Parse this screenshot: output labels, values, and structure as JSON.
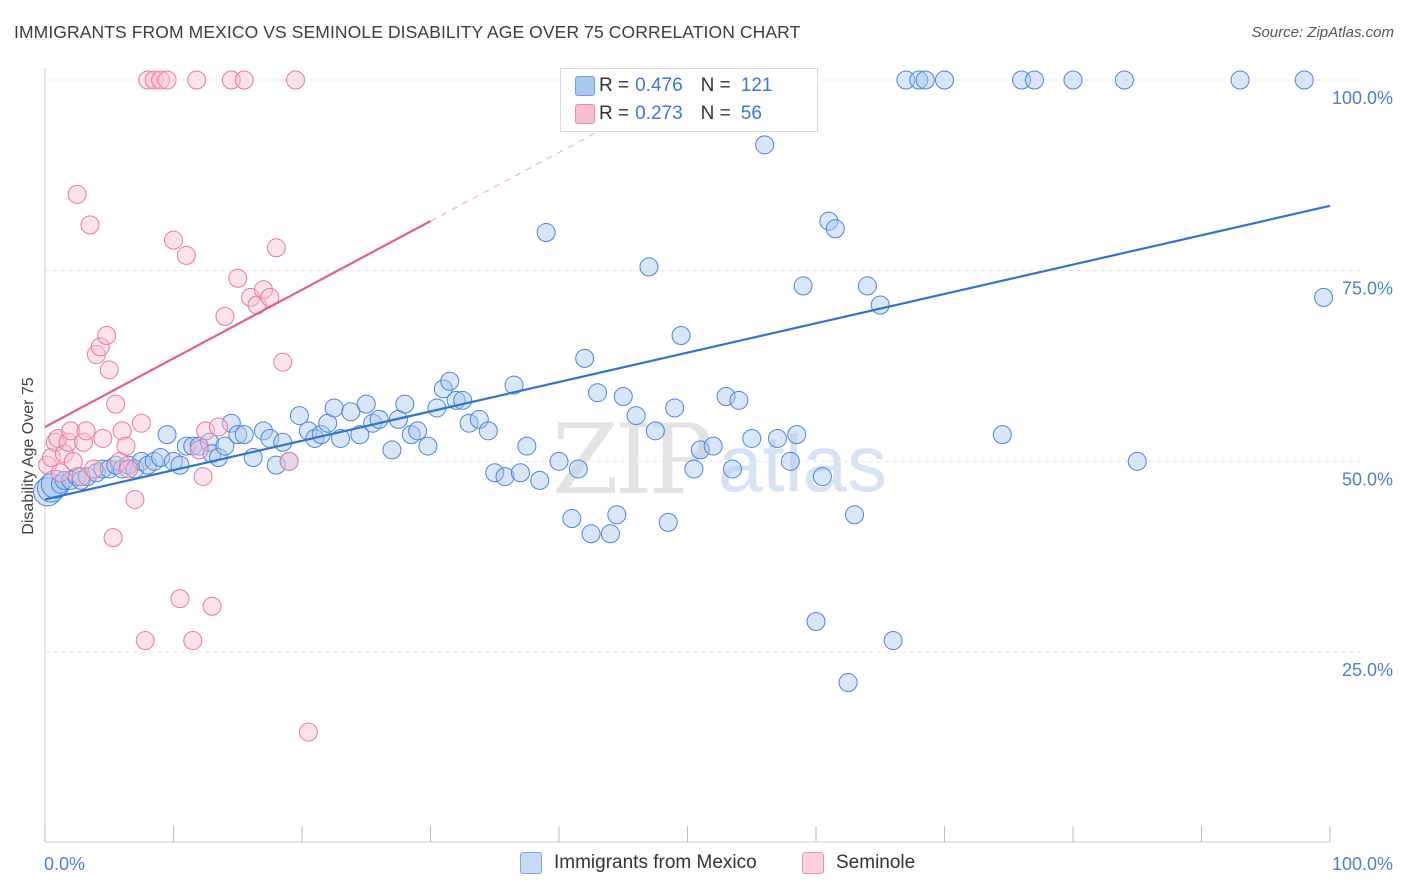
{
  "title": "IMMIGRANTS FROM MEXICO VS SEMINOLE DISABILITY AGE OVER 75 CORRELATION CHART",
  "source": "Source: ZipAtlas.com",
  "watermark": {
    "zip": "ZIP",
    "atlas": "atlas"
  },
  "legend": {
    "rows": [
      {
        "r_label": "R =",
        "r_value": "0.476",
        "n_label": "N =",
        "n_value": "121",
        "color": "#a9c8f0",
        "border": "#6f9fe0"
      },
      {
        "r_label": "R =",
        "r_value": "0.273",
        "n_label": "N =",
        "n_value": "56",
        "color": "#f8bfd2",
        "border": "#e889a8"
      }
    ]
  },
  "bottom_legend": [
    {
      "label": "Immigrants from Mexico",
      "color": "#c5daf5",
      "border": "#7aa6e3"
    },
    {
      "label": "Seminole",
      "color": "#fbd0de",
      "border": "#ec93b1"
    }
  ],
  "chart_data": {
    "type": "scatter",
    "title": "IMMIGRANTS FROM MEXICO VS SEMINOLE DISABILITY AGE OVER 75 CORRELATION CHART",
    "xlabel": "",
    "ylabel": "Disability Age Over 75",
    "xlim": [
      0,
      100
    ],
    "ylim": [
      0,
      100
    ],
    "x_tick_labels": [
      "0.0%",
      "100.0%"
    ],
    "y_ticks": [
      25,
      50,
      75,
      100
    ],
    "y_tick_labels": [
      "25.0%",
      "50.0%",
      "75.0%",
      "100.0%"
    ],
    "grid": true,
    "legend_placement": "top-center",
    "series": [
      {
        "name": "Immigrants from Mexico",
        "color": "#4a86d8",
        "fill": "rgba(170,200,240,0.45)",
        "trend": {
          "x0": 0,
          "y0": 45.0,
          "x1": 100,
          "y1": 83.5,
          "color": "#2f74d0"
        },
        "points": [
          [
            0.2,
            46
          ],
          [
            0.5,
            46.5
          ],
          [
            0.8,
            47
          ],
          [
            1.2,
            47
          ],
          [
            1.5,
            47.5
          ],
          [
            2,
            47.5
          ],
          [
            2.5,
            48
          ],
          [
            2.8,
            47.5
          ],
          [
            3.3,
            48
          ],
          [
            4,
            48.5
          ],
          [
            4.5,
            49
          ],
          [
            5,
            49
          ],
          [
            5.5,
            49.5
          ],
          [
            6,
            49
          ],
          [
            6.5,
            49.5
          ],
          [
            7,
            49
          ],
          [
            7.5,
            50
          ],
          [
            8,
            49.5
          ],
          [
            8.5,
            50
          ],
          [
            9,
            50.5
          ],
          [
            9.5,
            53.5
          ],
          [
            10,
            50
          ],
          [
            10.5,
            49.5
          ],
          [
            11,
            52
          ],
          [
            11.5,
            52
          ],
          [
            12,
            52
          ],
          [
            12.8,
            52.5
          ],
          [
            13,
            51
          ],
          [
            13.5,
            50.5
          ],
          [
            14,
            52
          ],
          [
            14.5,
            55
          ],
          [
            15,
            53.5
          ],
          [
            15.5,
            53.5
          ],
          [
            16.2,
            50.5
          ],
          [
            17,
            54
          ],
          [
            17.5,
            53
          ],
          [
            18,
            49.5
          ],
          [
            18.5,
            52.5
          ],
          [
            19,
            50
          ],
          [
            19.8,
            56
          ],
          [
            20.5,
            54
          ],
          [
            21,
            53
          ],
          [
            21.5,
            53.5
          ],
          [
            22,
            55
          ],
          [
            22.5,
            57
          ],
          [
            23,
            53
          ],
          [
            23.8,
            56.5
          ],
          [
            24.5,
            53.5
          ],
          [
            25,
            57.5
          ],
          [
            25.5,
            55
          ],
          [
            26,
            55.5
          ],
          [
            27,
            51.5
          ],
          [
            27.5,
            55.5
          ],
          [
            28,
            57.5
          ],
          [
            28.5,
            53.5
          ],
          [
            29,
            54
          ],
          [
            29.8,
            52
          ],
          [
            30.5,
            57
          ],
          [
            31,
            59.5
          ],
          [
            31.5,
            60.5
          ],
          [
            32,
            58
          ],
          [
            32.5,
            58
          ],
          [
            33,
            55
          ],
          [
            33.8,
            55.5
          ],
          [
            34.5,
            54
          ],
          [
            35,
            48.5
          ],
          [
            35.8,
            48
          ],
          [
            36.5,
            60
          ],
          [
            37,
            48.5
          ],
          [
            37.5,
            52
          ],
          [
            38.5,
            47.5
          ],
          [
            39,
            80
          ],
          [
            40,
            50
          ],
          [
            41,
            42.5
          ],
          [
            41.5,
            49
          ],
          [
            42,
            63.5
          ],
          [
            42.5,
            40.5
          ],
          [
            43,
            59
          ],
          [
            44,
            40.5
          ],
          [
            44.5,
            43
          ],
          [
            45,
            58.5
          ],
          [
            46,
            56
          ],
          [
            47,
            75.5
          ],
          [
            47.5,
            54
          ],
          [
            48.5,
            42
          ],
          [
            49,
            57
          ],
          [
            49.5,
            66.5
          ],
          [
            50.5,
            49
          ],
          [
            51,
            51.5
          ],
          [
            52,
            52
          ],
          [
            53,
            58.5
          ],
          [
            53.5,
            49
          ],
          [
            54,
            58
          ],
          [
            55,
            53
          ],
          [
            56,
            91.5
          ],
          [
            57,
            53
          ],
          [
            58,
            50
          ],
          [
            58.5,
            53.5
          ],
          [
            59,
            73
          ],
          [
            60,
            29
          ],
          [
            60.5,
            48
          ],
          [
            61,
            81.5
          ],
          [
            61.5,
            80.5
          ],
          [
            62.5,
            21
          ],
          [
            63,
            43
          ],
          [
            64,
            73
          ],
          [
            65,
            70.5
          ],
          [
            66,
            26.5
          ],
          [
            67,
            100
          ],
          [
            68,
            100
          ],
          [
            68.5,
            100
          ],
          [
            70,
            100
          ],
          [
            74.5,
            53.5
          ],
          [
            76,
            100
          ],
          [
            77,
            100
          ],
          [
            80,
            100
          ],
          [
            84,
            100
          ],
          [
            85,
            50
          ],
          [
            93,
            100
          ],
          [
            99.5,
            71.5
          ],
          [
            98,
            100
          ]
        ]
      },
      {
        "name": "Seminole",
        "color": "#e8789e",
        "fill": "rgba(248,190,210,0.45)",
        "trend": {
          "x0": 0,
          "y0": 54.5,
          "x1": 30,
          "y1": 81.5,
          "color": "#e0608a"
        },
        "trend_extension": {
          "x0": 30,
          "y0": 81.5,
          "x1": 50,
          "y1": 99.5
        },
        "points": [
          [
            0.2,
            49.5
          ],
          [
            0.5,
            50.5
          ],
          [
            0.8,
            52.5
          ],
          [
            1,
            53
          ],
          [
            1.2,
            48.5
          ],
          [
            1.5,
            51
          ],
          [
            1.8,
            52.5
          ],
          [
            2,
            54
          ],
          [
            2.2,
            50
          ],
          [
            2.5,
            85
          ],
          [
            2.8,
            48
          ],
          [
            3,
            52.5
          ],
          [
            3.2,
            54
          ],
          [
            3.5,
            81
          ],
          [
            3.8,
            49
          ],
          [
            4,
            64
          ],
          [
            4.3,
            65
          ],
          [
            4.5,
            53
          ],
          [
            4.8,
            66.5
          ],
          [
            5,
            62
          ],
          [
            5.3,
            40
          ],
          [
            5.5,
            57.5
          ],
          [
            5.8,
            50
          ],
          [
            6,
            54
          ],
          [
            6.3,
            52
          ],
          [
            6.5,
            49
          ],
          [
            7,
            45
          ],
          [
            7.5,
            55
          ],
          [
            8,
            100
          ],
          [
            8.5,
            100
          ],
          [
            9,
            100
          ],
          [
            9.5,
            100
          ],
          [
            10,
            79
          ],
          [
            10.5,
            32
          ],
          [
            11,
            77
          ],
          [
            11.5,
            26.5
          ],
          [
            12,
            51.5
          ],
          [
            12.5,
            54
          ],
          [
            13,
            31
          ],
          [
            13.5,
            54.5
          ],
          [
            14,
            69
          ],
          [
            14.5,
            100
          ],
          [
            15,
            74
          ],
          [
            15.5,
            100
          ],
          [
            16,
            71.5
          ],
          [
            16.5,
            70.5
          ],
          [
            17,
            72.5
          ],
          [
            17.5,
            71.5
          ],
          [
            18,
            78
          ],
          [
            18.5,
            63
          ],
          [
            19,
            50
          ],
          [
            19.5,
            100
          ],
          [
            20.5,
            14.5
          ],
          [
            7.8,
            26.5
          ],
          [
            11.8,
            100
          ],
          [
            12.3,
            48
          ]
        ]
      }
    ]
  }
}
